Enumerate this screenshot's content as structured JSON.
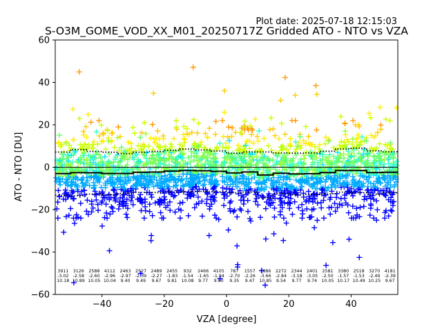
{
  "plot_date": "Plot date: 2025-07-18 12:15:03",
  "chart_data": {
    "type": "scatter",
    "title": "S-O3M_GOME_VOD_XX_M01_20250717Z Gridded ATO - NTO vs VZA",
    "xlabel": "VZA [degree]",
    "ylabel": "ATO - NTO [DU]",
    "xlim": [
      -55,
      55
    ],
    "ylim": [
      -60,
      60
    ],
    "xticks": [
      -40,
      -20,
      0,
      20,
      40
    ],
    "yticks": [
      -60,
      -40,
      -20,
      0,
      20,
      40,
      60
    ],
    "grid": false,
    "zero_line": 0,
    "marker": "+",
    "colors": [
      "#0000ff",
      "#00aaff",
      "#00e5ff",
      "#33ffcc",
      "#66ff66",
      "#99ff33",
      "#ccff00",
      "#ffee00",
      "#ffcc00",
      "#ff9900"
    ],
    "bins": [
      {
        "x": -52.5,
        "count": "3911",
        "mean": "-3.02",
        "std": "10.18"
      },
      {
        "x": -47.5,
        "count": "3126",
        "mean": "-2.58",
        "std": "10.89"
      },
      {
        "x": -42.5,
        "count": "2588",
        "mean": "-2.60",
        "std": "10.05"
      },
      {
        "x": -37.5,
        "count": "4112",
        "mean": "-2.96",
        "std": "10.04"
      },
      {
        "x": -32.5,
        "count": "2463",
        "mean": "-2.97",
        "std": "9.40"
      },
      {
        "x": -27.5,
        "count": "2527",
        "mean": "-2.39",
        "std": "9.49"
      },
      {
        "x": -22.5,
        "count": "2489",
        "mean": "-2.27",
        "std": "9.67"
      },
      {
        "x": -17.5,
        "count": "2455",
        "mean": "-1.83",
        "std": "9.81"
      },
      {
        "x": -12.5,
        "count": "932",
        "mean": "-1.54",
        "std": "10.08"
      },
      {
        "x": -7.5,
        "count": "2466",
        "mean": "-1.65",
        "std": "9.77"
      },
      {
        "x": -2.5,
        "count": "4105",
        "mean": "-1.94",
        "std": "9.60"
      },
      {
        "x": 2.5,
        "count": "787",
        "mean": "-2.70",
        "std": "9.35"
      },
      {
        "x": 7.5,
        "count": "1557",
        "mean": "-2.26",
        "std": "9.47"
      },
      {
        "x": 12.5,
        "count": "1886",
        "mean": "-3.66",
        "std": "10.85"
      },
      {
        "x": 17.5,
        "count": "2272",
        "mean": "-2.84",
        "std": "9.54"
      },
      {
        "x": 22.5,
        "count": "2344",
        "mean": "-3.18",
        "std": "9.77"
      },
      {
        "x": 27.5,
        "count": "2401",
        "mean": "-3.05",
        "std": "9.74"
      },
      {
        "x": 32.5,
        "count": "2581",
        "mean": "-2.50",
        "std": "10.05"
      },
      {
        "x": 37.5,
        "count": "3380",
        "mean": "-1.57",
        "std": "10.17"
      },
      {
        "x": 42.5,
        "count": "2518",
        "mean": "-1.53",
        "std": "10.49"
      },
      {
        "x": 47.5,
        "count": "3270",
        "mean": "-2.49",
        "std": "10.25"
      },
      {
        "x": 52.5,
        "count": "4181",
        "mean": "-2.39",
        "std": "9.67"
      }
    ]
  }
}
